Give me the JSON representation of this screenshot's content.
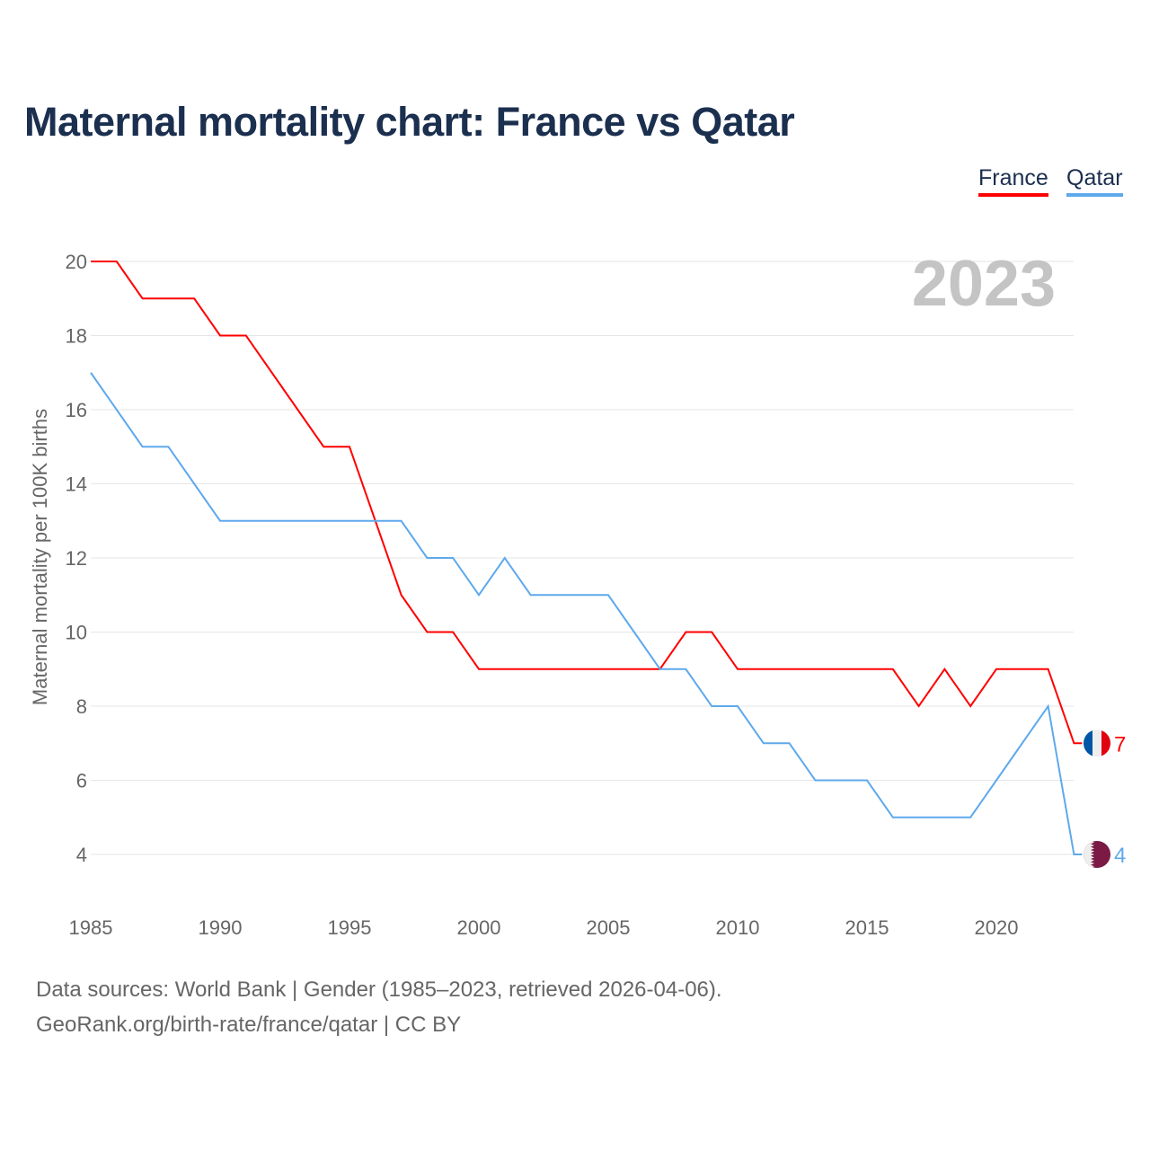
{
  "title": "Maternal mortality chart: France vs Qatar",
  "footer": {
    "line1": "Data sources: World Bank | Gender (1985–2023, retrieved 2026-04-06).",
    "line2": "GeoRank.org/birth-rate/france/qatar | CC BY"
  },
  "chart_data": {
    "type": "line",
    "title": "Maternal mortality chart: France vs Qatar",
    "ylabel": "Maternal mortality per 100K births",
    "xlabel": "",
    "year_label": "2023",
    "ylim": [
      3,
      20.5
    ],
    "xlim": [
      1985,
      2023
    ],
    "yticks": [
      4,
      6,
      8,
      10,
      12,
      14,
      16,
      18,
      20
    ],
    "xticks": [
      1985,
      1990,
      1995,
      2000,
      2005,
      2010,
      2015,
      2020
    ],
    "legend_position": "top-right",
    "x": [
      1985,
      1986,
      1987,
      1988,
      1989,
      1990,
      1991,
      1992,
      1993,
      1994,
      1995,
      1996,
      1997,
      1998,
      1999,
      2000,
      2001,
      2002,
      2003,
      2004,
      2005,
      2006,
      2007,
      2008,
      2009,
      2010,
      2011,
      2012,
      2013,
      2014,
      2015,
      2016,
      2017,
      2018,
      2019,
      2020,
      2021,
      2022,
      2023
    ],
    "series": [
      {
        "name": "France",
        "color": "#ff0000",
        "flag": "france-flag",
        "end_label": "7",
        "values": [
          20,
          20,
          19,
          19,
          19,
          18,
          18,
          17,
          16,
          15,
          15,
          13,
          11,
          10,
          10,
          9,
          9,
          9,
          9,
          9,
          9,
          9,
          9,
          10,
          10,
          9,
          9,
          9,
          9,
          9,
          9,
          9,
          8,
          9,
          8,
          9,
          9,
          9,
          7
        ]
      },
      {
        "name": "Qatar",
        "color": "#5ea9ec",
        "flag": "qatar-flag",
        "end_label": "4",
        "values": [
          17,
          16,
          15,
          15,
          14,
          13,
          13,
          13,
          13,
          13,
          13,
          13,
          13,
          12,
          12,
          11,
          12,
          11,
          11,
          11,
          11,
          10,
          9,
          9,
          8,
          8,
          7,
          7,
          6,
          6,
          6,
          5,
          5,
          5,
          5,
          6,
          7,
          8,
          4
        ]
      }
    ]
  }
}
